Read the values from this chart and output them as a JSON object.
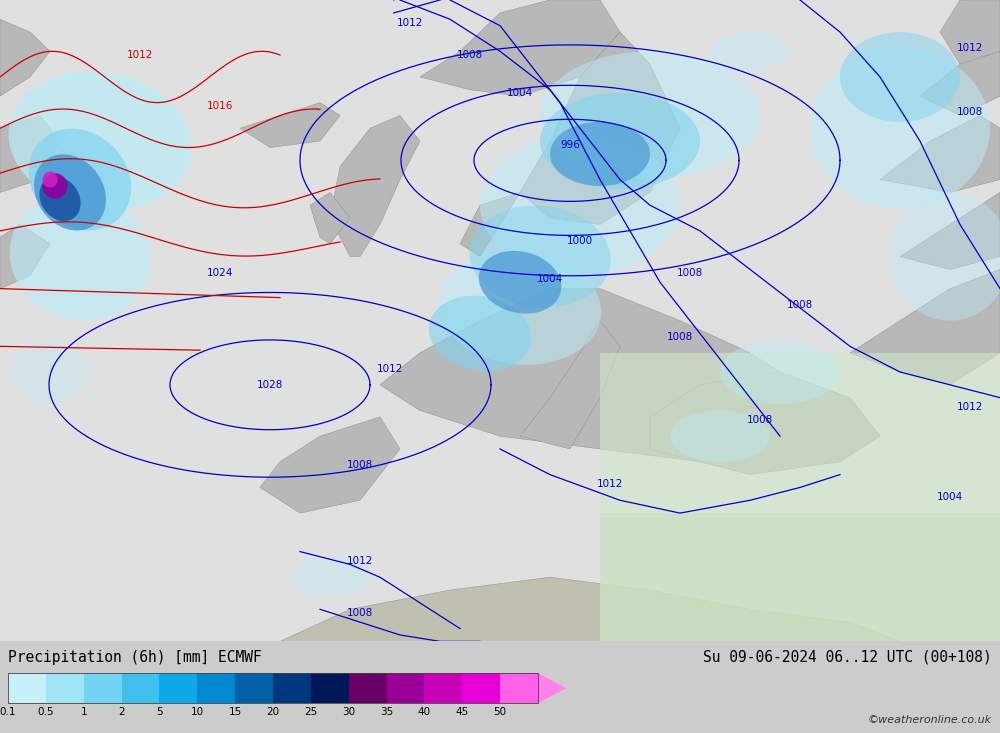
{
  "title_left": "Precipitation (6h) [mm] ECMWF",
  "title_right": "Su 09-06-2024 06..12 UTC (00+108)",
  "watermark": "©weatheronline.co.uk",
  "colorbar_labels": [
    "0.1",
    "0.5",
    "1",
    "2",
    "5",
    "10",
    "15",
    "20",
    "25",
    "30",
    "35",
    "40",
    "45",
    "50"
  ],
  "colorbar_colors": [
    "#c8f0f8",
    "#a0e4f5",
    "#70d4f2",
    "#40c0ee",
    "#10a8e8",
    "#0088d0",
    "#0060a8",
    "#003880",
    "#001858",
    "#680068",
    "#980098",
    "#c800b8",
    "#e800d8",
    "#ff60e8"
  ],
  "arrow_tip_color": "#ff80e0",
  "bg_color": "#cccccc",
  "ocean_color": "#e8e8e8",
  "land_color": "#c8c8c8",
  "precip_light_cyan": "#b8ecf8",
  "precip_mid_cyan": "#80d4f0",
  "precip_blue": "#4090d0",
  "precip_dark_blue": "#1850a0",
  "precip_purple": "#9000a0",
  "precip_magenta": "#d020c0",
  "isobar_blue": "#0000cc",
  "isobar_red": "#cc0000",
  "fig_width": 10.0,
  "fig_height": 7.33
}
